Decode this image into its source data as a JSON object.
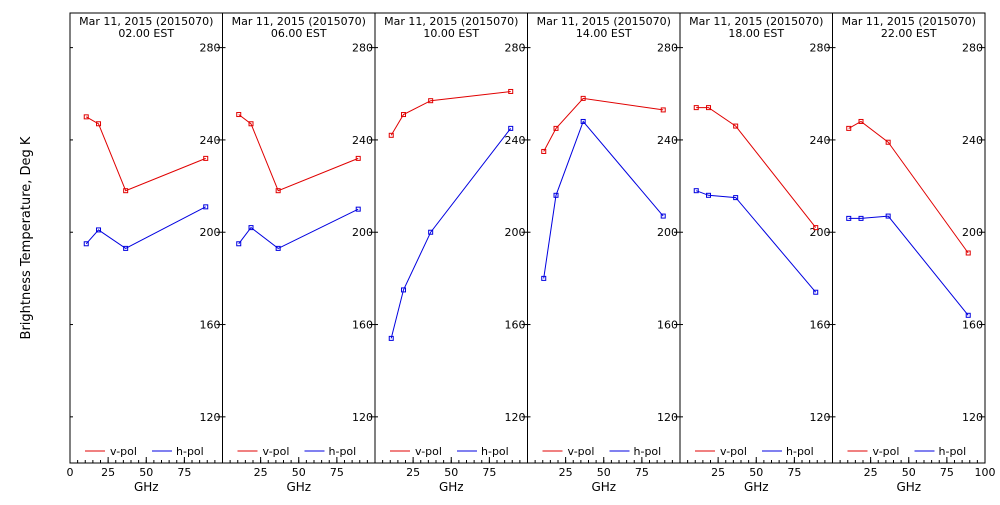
{
  "figure": {
    "ylabel": "Brightness Temperature, Deg K",
    "xlabel": "GHz",
    "date_label": "Mar 11, 2015 (2015070)",
    "legend": [
      "v-pol",
      "h-pol"
    ],
    "colors": {
      "v-pol": "#e00000",
      "h-pol": "#0000e0"
    }
  },
  "chart_data": [
    {
      "type": "line",
      "title": "Mar 11, 2015 (2015070)",
      "subtitle": "02.00 EST",
      "x": [
        10.65,
        18.7,
        36.5,
        89.0
      ],
      "series": [
        {
          "name": "v-pol",
          "values": [
            250,
            247,
            218,
            232
          ]
        },
        {
          "name": "h-pol",
          "values": [
            195,
            201,
            193,
            211
          ]
        }
      ],
      "xlabel": "GHz",
      "ylabel": "Brightness Temperature, Deg K",
      "xlim": [
        0,
        100
      ],
      "ylim": [
        100,
        295
      ],
      "xticks": [
        "0",
        "25",
        "50",
        "75"
      ],
      "yticks": [
        "120",
        "160",
        "200",
        "240",
        "280"
      ],
      "grid": false,
      "legend": "bottom"
    },
    {
      "type": "line",
      "title": "Mar 11, 2015 (2015070)",
      "subtitle": "06.00 EST",
      "x": [
        10.65,
        18.7,
        36.5,
        89.0
      ],
      "series": [
        {
          "name": "v-pol",
          "values": [
            251,
            247,
            218,
            232
          ]
        },
        {
          "name": "h-pol",
          "values": [
            195,
            202,
            193,
            210
          ]
        }
      ],
      "xlabel": "GHz",
      "xlim": [
        0,
        100
      ],
      "ylim": [
        100,
        295
      ],
      "xticks": [
        "25",
        "50",
        "75"
      ],
      "yticks": [
        "120",
        "160",
        "200",
        "240",
        "280"
      ],
      "grid": false,
      "legend": "bottom"
    },
    {
      "type": "line",
      "title": "Mar 11, 2015 (2015070)",
      "subtitle": "10.00 EST",
      "x": [
        10.65,
        18.7,
        36.5,
        89.0
      ],
      "series": [
        {
          "name": "v-pol",
          "values": [
            242,
            251,
            257,
            261
          ]
        },
        {
          "name": "h-pol",
          "values": [
            154,
            175,
            200,
            245
          ]
        }
      ],
      "xlabel": "GHz",
      "xlim": [
        0,
        100
      ],
      "ylim": [
        100,
        295
      ],
      "xticks": [
        "25",
        "50",
        "75"
      ],
      "yticks": [
        "120",
        "160",
        "200",
        "240",
        "280"
      ],
      "grid": false,
      "legend": "bottom"
    },
    {
      "type": "line",
      "title": "Mar 11, 2015 (2015070)",
      "subtitle": "14.00 EST",
      "x": [
        10.65,
        18.7,
        36.5,
        89.0
      ],
      "series": [
        {
          "name": "v-pol",
          "values": [
            235,
            245,
            258,
            253
          ]
        },
        {
          "name": "h-pol",
          "values": [
            180,
            216,
            248,
            207
          ]
        }
      ],
      "xlabel": "GHz",
      "xlim": [
        0,
        100
      ],
      "ylim": [
        100,
        295
      ],
      "xticks": [
        "25",
        "50",
        "75"
      ],
      "yticks": [
        "120",
        "160",
        "200",
        "240",
        "280"
      ],
      "grid": false,
      "legend": "bottom"
    },
    {
      "type": "line",
      "title": "Mar 11, 2015 (2015070)",
      "subtitle": "18.00 EST",
      "x": [
        10.65,
        18.7,
        36.5,
        89.0
      ],
      "series": [
        {
          "name": "v-pol",
          "values": [
            254,
            254,
            246,
            202
          ]
        },
        {
          "name": "h-pol",
          "values": [
            218,
            216,
            215,
            174
          ]
        }
      ],
      "xlabel": "GHz",
      "xlim": [
        0,
        100
      ],
      "ylim": [
        100,
        295
      ],
      "xticks": [
        "25",
        "50",
        "75"
      ],
      "yticks": [
        "120",
        "160",
        "200",
        "240",
        "280"
      ],
      "grid": false,
      "legend": "bottom"
    },
    {
      "type": "line",
      "title": "Mar 11, 2015 (2015070)",
      "subtitle": "22.00 EST",
      "x": [
        10.65,
        18.7,
        36.5,
        89.0
      ],
      "series": [
        {
          "name": "v-pol",
          "values": [
            245,
            248,
            239,
            191
          ]
        },
        {
          "name": "h-pol",
          "values": [
            206,
            206,
            207,
            164
          ]
        }
      ],
      "xlabel": "GHz",
      "xlim": [
        0,
        100
      ],
      "ylim": [
        100,
        295
      ],
      "xticks": [
        "25",
        "50",
        "75",
        "100"
      ],
      "yticks": [
        "120",
        "160",
        "200",
        "240",
        "280"
      ],
      "grid": false,
      "legend": "bottom"
    }
  ]
}
